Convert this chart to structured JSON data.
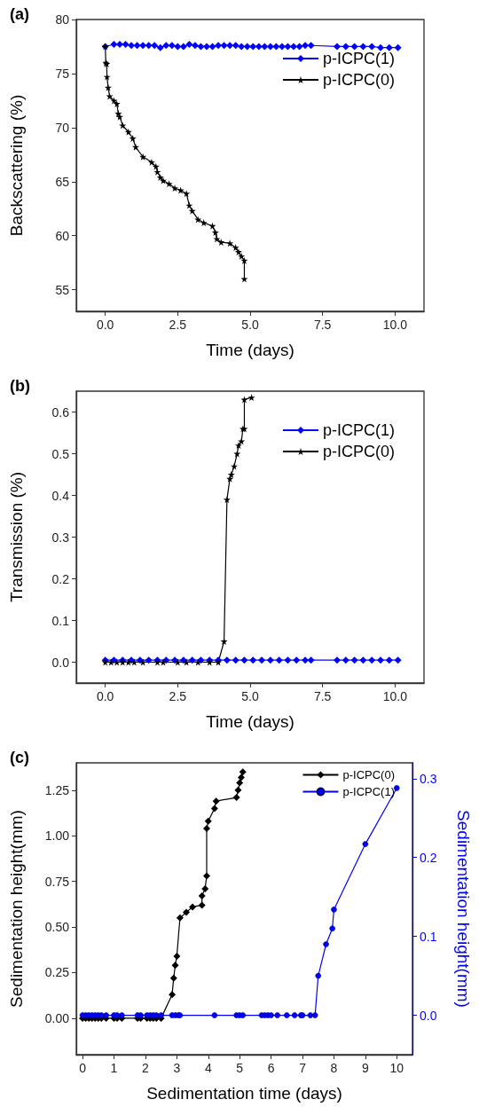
{
  "chart_data": [
    {
      "type": "line",
      "title": "(a)",
      "xlabel": "Time (days)",
      "ylabel": "Backscattering (%)",
      "xlim": [
        -1,
        11
      ],
      "xticks": [
        {
          "value": 0,
          "label": "0.0"
        },
        {
          "value": 2.5,
          "label": "2.5"
        },
        {
          "value": 5,
          "label": "5.0"
        },
        {
          "value": 7.5,
          "label": "7.5"
        },
        {
          "value": 10,
          "label": "10.0"
        }
      ],
      "ylim": [
        53,
        80
      ],
      "yticks": [
        55,
        60,
        65,
        70,
        75,
        80
      ],
      "legend": "top right",
      "series": [
        {
          "name": "p-ICPC(1)",
          "color": "#0000ff",
          "marker": "diamond",
          "x": [
            0,
            0.3,
            0.5,
            0.7,
            0.9,
            1.1,
            1.3,
            1.5,
            1.7,
            1.9,
            2.1,
            2.3,
            2.5,
            2.7,
            2.9,
            3.1,
            3.3,
            3.5,
            3.7,
            3.9,
            4.1,
            4.3,
            4.5,
            4.7,
            4.9,
            5.1,
            5.3,
            5.5,
            5.7,
            5.9,
            6.1,
            6.3,
            6.5,
            6.7,
            6.9,
            7.1,
            8.0,
            8.3,
            8.6,
            8.9,
            9.2,
            9.5,
            9.8,
            10.1
          ],
          "values": [
            77.5,
            77.7,
            77.7,
            77.7,
            77.6,
            77.6,
            77.6,
            77.6,
            77.6,
            77.4,
            77.6,
            77.6,
            77.5,
            77.5,
            77.7,
            77.6,
            77.5,
            77.5,
            77.5,
            77.6,
            77.6,
            77.6,
            77.6,
            77.5,
            77.5,
            77.5,
            77.5,
            77.5,
            77.5,
            77.5,
            77.5,
            77.5,
            77.5,
            77.5,
            77.6,
            77.6,
            77.5,
            77.5,
            77.5,
            77.5,
            77.5,
            77.4,
            77.4,
            77.4
          ]
        },
        {
          "name": "p-ICPC(0)",
          "color": "#000000",
          "marker": "star",
          "x": [
            0,
            0.02,
            0.05,
            0.06,
            0.1,
            0.15,
            0.3,
            0.4,
            0.45,
            0.5,
            0.6,
            0.8,
            0.95,
            1.05,
            1.3,
            1.6,
            1.75,
            1.8,
            1.9,
            2.0,
            2.2,
            2.4,
            2.6,
            2.8,
            2.9,
            3.0,
            3.2,
            3.4,
            3.7,
            3.8,
            3.85,
            4.0,
            4.3,
            4.5,
            4.6,
            4.7,
            4.8,
            4.8
          ],
          "values": [
            77.5,
            76,
            75.9,
            74.7,
            73.7,
            72.9,
            72.5,
            72.2,
            71.3,
            71,
            70.2,
            69.6,
            69,
            68.2,
            67.3,
            66.8,
            66.4,
            65.9,
            65.4,
            65.1,
            64.8,
            64.4,
            64.2,
            63.9,
            62.8,
            62.3,
            61.5,
            61.2,
            60.9,
            60.3,
            59.7,
            59.4,
            59.3,
            58.9,
            58.5,
            58.1,
            57.7,
            56
          ]
        }
      ]
    },
    {
      "type": "line",
      "title": "(b)",
      "xlabel": "Time (days)",
      "ylabel": "Transmission (%)",
      "xlim": [
        -1,
        11
      ],
      "xticks": [
        {
          "value": 0,
          "label": "0.0"
        },
        {
          "value": 2.5,
          "label": "2.5"
        },
        {
          "value": 5,
          "label": "5.0"
        },
        {
          "value": 7.5,
          "label": "7.5"
        },
        {
          "value": 10,
          "label": "10.0"
        }
      ],
      "ylim": [
        -0.05,
        0.65
      ],
      "yticks": [
        {
          "value": 0,
          "label": "0.0"
        },
        0.1,
        0.2,
        0.3,
        0.4,
        0.5,
        0.6
      ],
      "legend": "top right",
      "series": [
        {
          "name": "p-ICPC(1)",
          "color": "#0000ff",
          "marker": "diamond",
          "x": [
            0,
            0.3,
            0.6,
            0.9,
            1.2,
            1.5,
            1.8,
            2.1,
            2.4,
            2.7,
            3.0,
            3.3,
            3.6,
            3.9,
            4.2,
            4.5,
            4.8,
            5.1,
            5.4,
            5.7,
            6.0,
            6.3,
            6.6,
            6.9,
            7.1,
            8.0,
            8.3,
            8.6,
            8.9,
            9.2,
            9.5,
            9.8,
            10.1
          ],
          "values": [
            0.005,
            0.005,
            0.005,
            0.005,
            0.005,
            0.005,
            0.005,
            0.005,
            0.005,
            0.005,
            0.005,
            0.005,
            0.005,
            0.005,
            0.005,
            0.005,
            0.005,
            0.005,
            0.005,
            0.005,
            0.005,
            0.005,
            0.005,
            0.005,
            0.005,
            0.005,
            0.005,
            0.005,
            0.005,
            0.005,
            0.005,
            0.005,
            0.005
          ]
        },
        {
          "name": "p-ICPC(0)",
          "color": "#000000",
          "marker": "star",
          "x": [
            0,
            0.2,
            0.4,
            0.6,
            0.8,
            1.0,
            1.3,
            1.8,
            2.0,
            2.5,
            2.8,
            3.2,
            3.6,
            3.9,
            4.1,
            4.2,
            4.3,
            4.35,
            4.45,
            4.55,
            4.6,
            4.7,
            4.75,
            4.8,
            4.8,
            5.05
          ],
          "values": [
            0,
            0,
            0,
            0,
            0,
            0,
            0,
            0,
            0,
            0,
            0,
            0,
            0,
            0,
            0.05,
            0.39,
            0.44,
            0.45,
            0.47,
            0.5,
            0.52,
            0.53,
            0.56,
            0.56,
            0.63,
            0.635
          ]
        }
      ]
    },
    {
      "type": "line",
      "title": "(c)",
      "xlabel": "Sedimentation time (days)",
      "ylabel": "Sedimentation height(mm)",
      "y2label": "Sedimentation height(mm)",
      "xlim": [
        -0.2,
        10.5
      ],
      "xticks": [
        0,
        1,
        2,
        3,
        4,
        5,
        6,
        7,
        8,
        9,
        10
      ],
      "ylim": [
        -0.2,
        1.4
      ],
      "yticks": [
        {
          "value": 0,
          "label": "0.00"
        },
        0.25,
        {
          "value": 0.5,
          "label": "0.50"
        },
        0.75,
        {
          "value": 1,
          "label": "1.00"
        },
        1.25
      ],
      "y2lim": [
        -0.05,
        0.32
      ],
      "y2ticks": [
        {
          "value": 0,
          "label": "0.0"
        },
        0.1,
        0.2,
        0.3
      ],
      "legend": "top right",
      "series": [
        {
          "name": "p-ICPC(0)",
          "color": "#000000",
          "marker": "diamond",
          "x": [
            0,
            0.1,
            0.2,
            0.3,
            0.4,
            0.5,
            0.6,
            0.75,
            1.0,
            1.1,
            1.25,
            1.75,
            1.85,
            2.05,
            2.15,
            2.25,
            2.35,
            2.5,
            2.85,
            2.9,
            2.95,
            3.0,
            3.1,
            3.3,
            3.5,
            3.8,
            3.8,
            3.9,
            3.95,
            3.95,
            4.0,
            4.2,
            4.25,
            4.9,
            4.95,
            5.0,
            5.05,
            5.1
          ],
          "values": [
            0,
            0,
            0,
            0,
            0,
            0,
            0,
            0,
            0,
            0,
            0,
            0,
            0,
            0,
            0,
            0,
            0,
            0,
            0.13,
            0.22,
            0.29,
            0.34,
            0.55,
            0.58,
            0.61,
            0.62,
            0.67,
            0.71,
            0.78,
            1.04,
            1.08,
            1.15,
            1.19,
            1.21,
            1.25,
            1.29,
            1.32,
            1.35
          ]
        },
        {
          "name": "p-ICPC(1)",
          "color": "#0000ff",
          "marker": "circle",
          "axis": "y2",
          "x": [
            0,
            0.1,
            0.2,
            0.3,
            0.4,
            0.5,
            0.6,
            0.75,
            1.0,
            1.1,
            1.25,
            1.75,
            1.85,
            2.05,
            2.15,
            2.25,
            2.35,
            2.5,
            2.85,
            2.95,
            3.05,
            3.1,
            4.2,
            4.9,
            5.0,
            5.1,
            5.7,
            5.8,
            5.9,
            6.0,
            6.2,
            6.5,
            6.75,
            6.95,
            7.0,
            7.25,
            7.4,
            7.5,
            7.75,
            7.95,
            8.0,
            9.0,
            10.0
          ],
          "values": [
            0,
            0,
            0,
            0,
            0,
            0,
            0,
            0,
            0,
            0,
            0,
            0,
            0,
            0,
            0,
            0,
            0,
            0,
            0,
            0,
            0,
            0,
            0,
            0,
            0,
            0,
            0,
            0,
            0,
            0,
            0,
            0,
            0,
            0,
            0,
            0,
            0,
            0.05,
            0.09,
            0.11,
            0.134,
            0.217,
            0.288
          ]
        }
      ]
    }
  ]
}
